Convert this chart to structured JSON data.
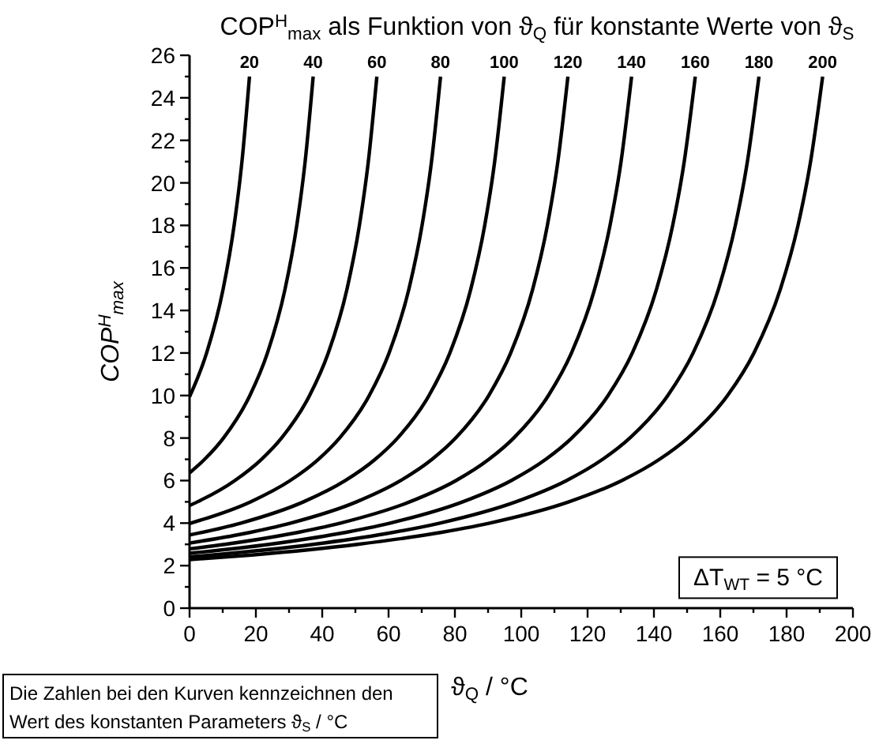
{
  "chart_data": {
    "type": "line",
    "title": "COP$^{H}$$_{max}$ als Funktion von ϑ$_{Q}$ für konstante Werte von ϑ$_{S}$",
    "xlabel": "ϑ$_{Q}$ / °C",
    "ylabel": "COP$^{H}$$_{max}$",
    "annotations": [
      "ΔT$_{WT}$ = 5 °C",
      "Die Zahlen bei den Kurven kennzeichnen den Wert des konstanten Parameters ϑ$_{S}$ / °C"
    ],
    "xlim": [
      0,
      200
    ],
    "xticks": [
      0,
      {
        "value": 10,
        "label": null
      },
      20,
      {
        "value": 30,
        "label": null
      },
      40,
      {
        "value": 50,
        "label": null
      },
      60,
      {
        "value": 70,
        "label": null
      },
      80,
      {
        "value": 90,
        "label": null
      },
      100,
      {
        "value": 110,
        "label": null
      },
      120,
      {
        "value": 130,
        "label": null
      },
      140,
      {
        "value": 150,
        "label": null
      },
      160,
      {
        "value": 170,
        "label": null
      },
      180,
      {
        "value": 190,
        "label": null
      },
      200
    ],
    "ylim": [
      0,
      26
    ],
    "yticks": [
      0,
      {
        "value": 1,
        "label": null
      },
      2,
      {
        "value": 3,
        "label": null
      },
      4,
      {
        "value": 5,
        "label": null
      },
      6,
      {
        "value": 7,
        "label": null
      },
      8,
      {
        "value": 9,
        "label": null
      },
      10,
      {
        "value": 11,
        "label": null
      },
      12,
      {
        "value": 13,
        "label": null
      },
      14,
      {
        "value": 15,
        "label": null
      },
      16,
      {
        "value": 17,
        "label": null
      },
      18,
      {
        "value": 19,
        "label": null
      },
      20,
      {
        "value": 21,
        "label": null
      },
      22,
      {
        "value": 23,
        "label": null
      },
      24,
      {
        "value": 25,
        "label": null
      },
      26
    ],
    "grid": false,
    "marker": "none",
    "line_style": "solid",
    "series": [
      {
        "name": "20",
        "color": "#000000",
        "x": [
          0,
          5.15,
          10.12,
          13.44,
          15.8,
          18.07
        ],
        "values": [
          9.94,
          12,
          15,
          18,
          21,
          25
        ]
      },
      {
        "name": "40",
        "color": "#000000",
        "x": [
          0,
          4.55,
          10.23,
          18.19,
          23.49,
          28.79,
          32.33,
          34.85,
          37.27
        ],
        "values": [
          6.36,
          7,
          8,
          10,
          12,
          15,
          18,
          21,
          25
        ]
      },
      {
        "name": "60",
        "color": "#000000",
        "x": [
          0,
          2.37,
          13.64,
          21.69,
          27.73,
          36.19,
          41.82,
          47.46,
          51.21,
          53.9,
          56.47
        ],
        "values": [
          4.83,
          5,
          6,
          7,
          8,
          10,
          12,
          15,
          18,
          21,
          25
        ]
      },
      {
        "name": "80",
        "color": "#000000",
        "x": [
          0,
          18.37,
          30.31,
          38.84,
          45.23,
          54.19,
          60.15,
          66.12,
          70.1,
          72.95,
          75.67
        ],
        "values": [
          3.98,
          5,
          6,
          7,
          8,
          10,
          12,
          15,
          18,
          21,
          25
        ]
      },
      {
        "name": "100",
        "color": "#000000",
        "x": [
          0,
          15.46,
          34.37,
          46.97,
          55.98,
          62.73,
          72.19,
          78.49,
          84.79,
          88.99,
          91.99,
          94.87
        ],
        "values": [
          3.44,
          4,
          5,
          6,
          7,
          8,
          10,
          12,
          15,
          18,
          21,
          25
        ]
      },
      {
        "name": "120",
        "color": "#000000",
        "x": [
          0,
          16.24,
          30.46,
          50.37,
          63.64,
          73.12,
          80.23,
          90.19,
          96.82,
          103.46,
          107.88,
          111.04,
          114.07
        ],
        "values": [
          3.06,
          3.5,
          4,
          5,
          6,
          7,
          8,
          10,
          12,
          15,
          18,
          21,
          25
        ]
      },
      {
        "name": "140",
        "color": "#000000",
        "x": [
          0,
          10.62,
          30.53,
          45.46,
          66.37,
          80.31,
          90.26,
          97.73,
          108.19,
          115.15,
          122.12,
          126.77,
          130.09,
          133.27
        ],
        "values": [
          2.79,
          3,
          3.5,
          4,
          5,
          6,
          7,
          8,
          10,
          12,
          15,
          18,
          21,
          25
        ]
      },
      {
        "name": "160",
        "color": "#000000",
        "x": [
          0,
          23.95,
          44.81,
          60.46,
          82.37,
          96.97,
          107.41,
          115.23,
          126.19,
          133.49,
          140.79,
          145.66,
          149.14,
          152.47
        ],
        "values": [
          2.58,
          3,
          3.5,
          4,
          5,
          6,
          7,
          8,
          10,
          12,
          15,
          18,
          21,
          25
        ]
      },
      {
        "name": "180",
        "color": "#000000",
        "x": [
          0,
          6.74,
          37.28,
          59.1,
          75.46,
          98.37,
          113.64,
          124.55,
          132.73,
          144.19,
          151.82,
          159.46,
          164.55,
          168.18,
          171.67
        ],
        "values": [
          2.41,
          2.5,
          3,
          3.5,
          4,
          5,
          6,
          7,
          8,
          10,
          12,
          15,
          18,
          21,
          25
        ]
      },
      {
        "name": "200",
        "color": "#000000",
        "x": [
          0,
          18.74,
          50.62,
          73.39,
          90.46,
          114.37,
          130.31,
          141.69,
          150.23,
          162.19,
          170.15,
          178.12,
          183.44,
          187.23,
          190.87
        ],
        "values": [
          2.28,
          2.5,
          3,
          3.5,
          4,
          5,
          6,
          7,
          8,
          10,
          12,
          15,
          18,
          21,
          25
        ]
      }
    ]
  }
}
